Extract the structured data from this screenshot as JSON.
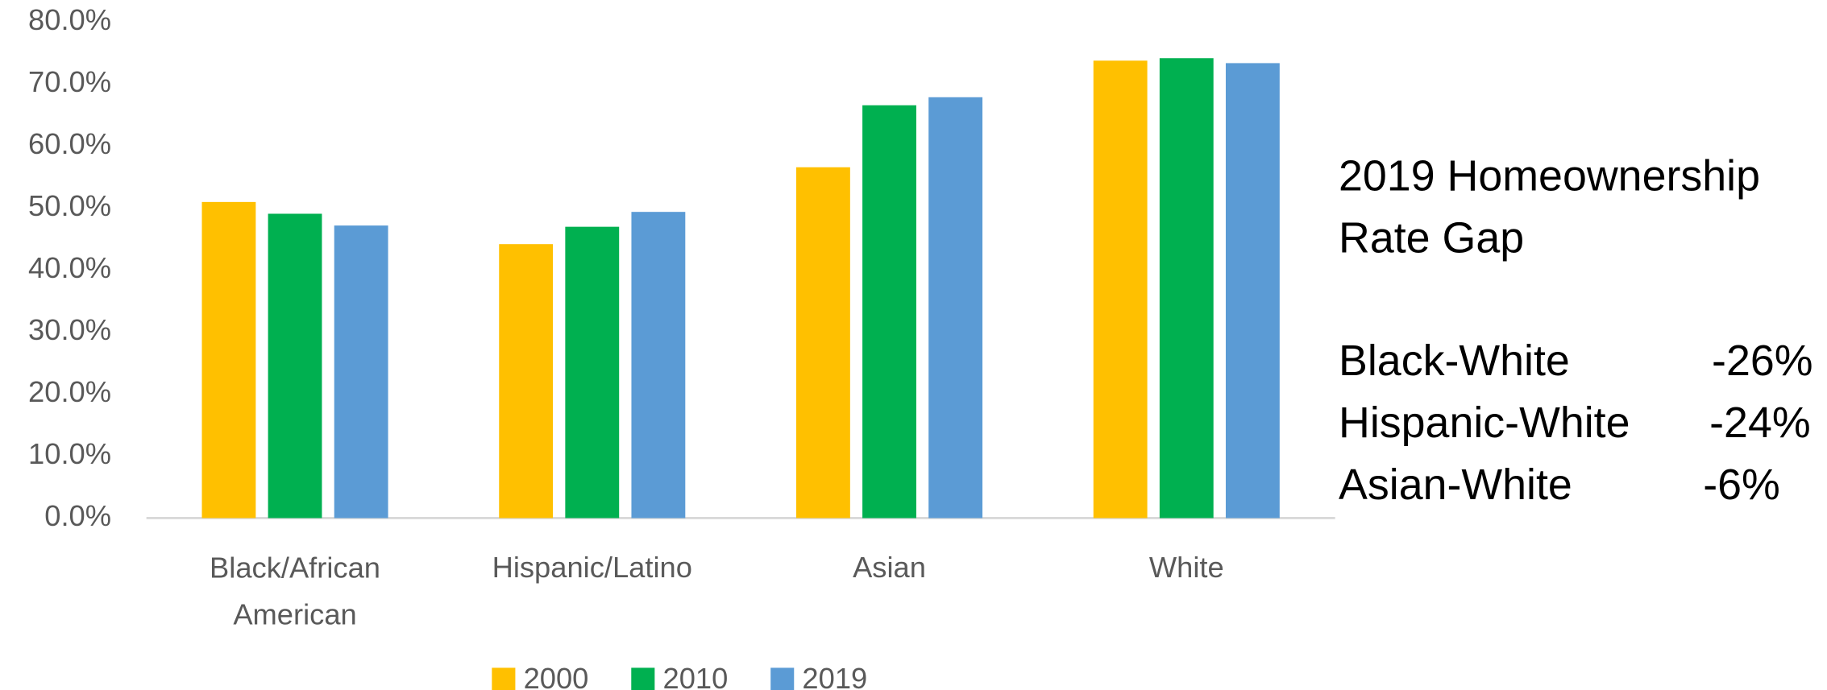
{
  "chart_data": {
    "type": "bar",
    "categories": [
      "Black/African American",
      "Hispanic/Latino",
      "Asian",
      "White"
    ],
    "series": [
      {
        "name": "2000",
        "color": "#ffc000",
        "values": [
          51.0,
          44.2,
          56.6,
          73.8
        ]
      },
      {
        "name": "2010",
        "color": "#00b050",
        "values": [
          49.1,
          47.0,
          66.6,
          74.2
        ]
      },
      {
        "name": "2019",
        "color": "#5b9bd5",
        "values": [
          47.2,
          49.4,
          67.9,
          73.4
        ]
      }
    ],
    "ylim": [
      0,
      80
    ],
    "yticks": [
      {
        "value": 0,
        "label": "0.0%"
      },
      {
        "value": 10,
        "label": "10.0%"
      },
      {
        "value": 20,
        "label": "20.0%"
      },
      {
        "value": 30,
        "label": "30.0%"
      },
      {
        "value": 40,
        "label": "40.0%"
      },
      {
        "value": 50,
        "label": "50.0%"
      },
      {
        "value": 60,
        "label": "60.0%"
      },
      {
        "value": 70,
        "label": "70.0%"
      },
      {
        "value": 80,
        "label": "80.0%"
      }
    ],
    "grid": false,
    "legend": "bottom",
    "annotation_title": [
      "2019 Homeownership",
      "Rate Gap"
    ],
    "annotations": [
      {
        "label": "Black-White",
        "value": "-26%"
      },
      {
        "label": "Hispanic-White",
        "value": "-24%"
      },
      {
        "label": "Asian-White",
        "value": "-6%"
      }
    ]
  }
}
